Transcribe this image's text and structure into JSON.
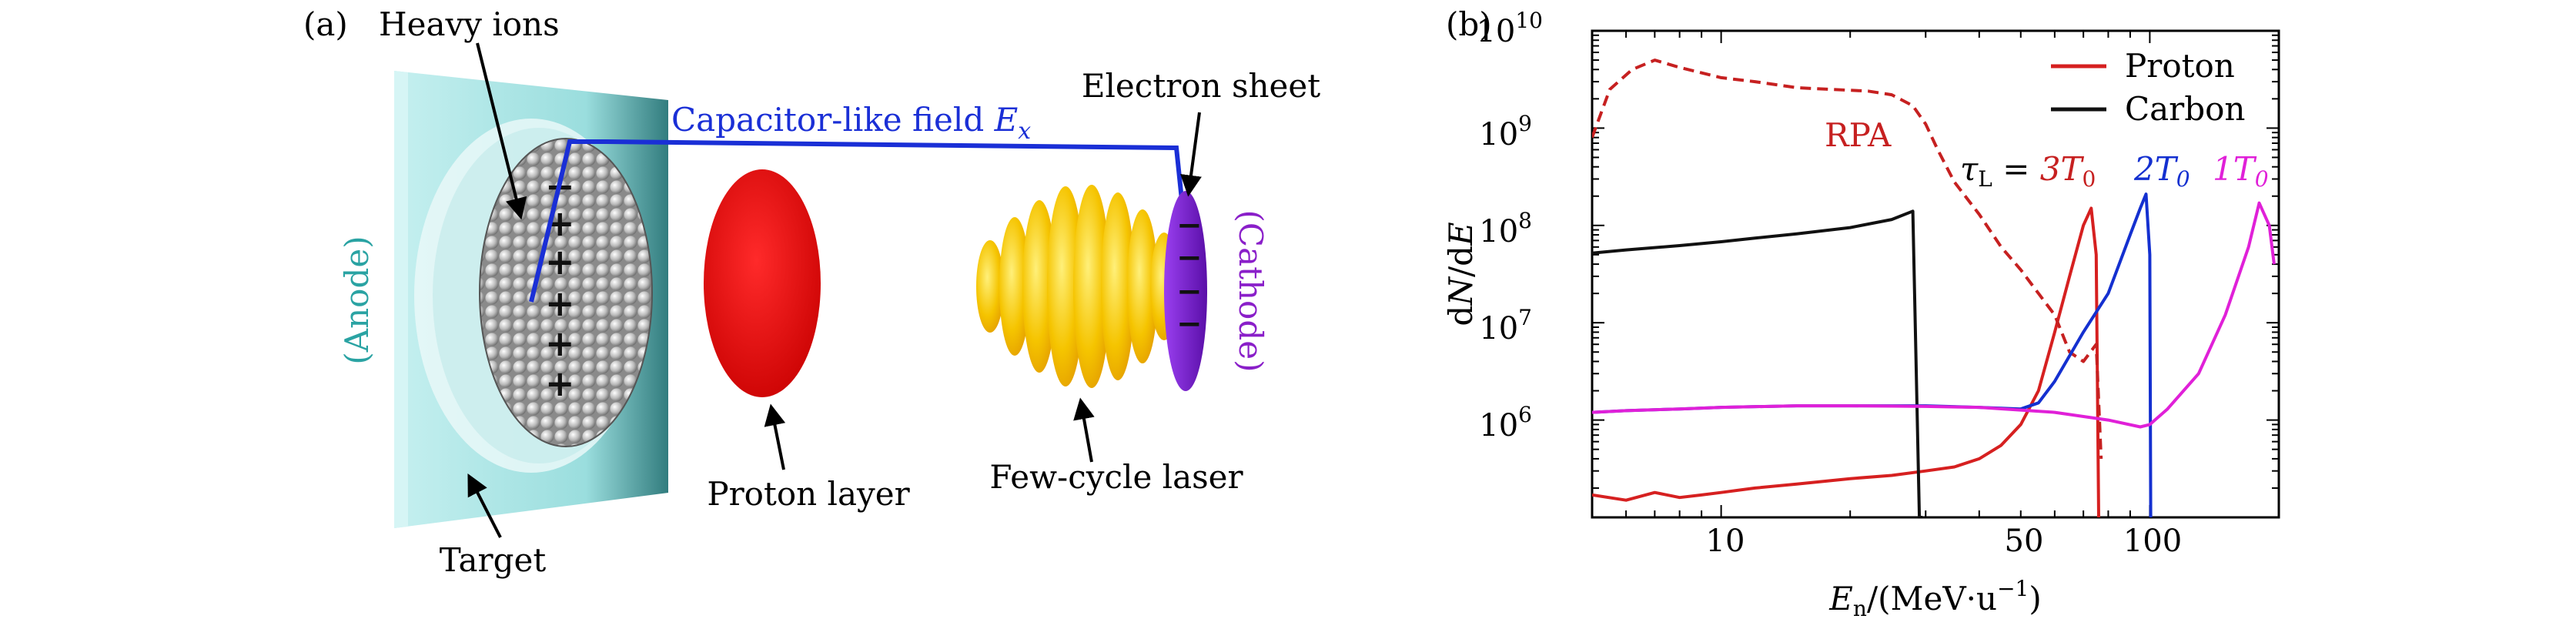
{
  "panel_a": {
    "tag": "(a)",
    "heavy_ions": "Heavy ions",
    "capacitor_field_text": "Capacitor-like field ",
    "capacitor_field_symbol": "E",
    "capacitor_field_subscript": "x",
    "electron_sheet": "Electron sheet",
    "anode": "(Anode)",
    "cathode": "(Cathode)",
    "proton_layer": "Proton layer",
    "few_cycle_laser": "Few-cycle laser",
    "target": "Target",
    "charge_plus": "+",
    "charge_minus": "−",
    "colors": {
      "field_line": "#1a2fd6",
      "proton": "#e00000",
      "laser": "#f5c400",
      "electron": "#7b1fd1",
      "target": "#7fd3d3",
      "anode_text": "#2aa3a3",
      "cathode_text": "#8a1fc9"
    }
  },
  "panel_b": {
    "tag": "(b)",
    "legend": [
      {
        "label": "Proton",
        "color": "#d62020"
      },
      {
        "label": "Carbon",
        "color": "#111111"
      }
    ],
    "annotation_rpa": "RPA",
    "annotation_tau": "τ",
    "annotation_tau_sub": "L",
    "annotation_eq": " = ",
    "annotation_3t0": "3T",
    "annotation_2t0": "2T",
    "annotation_1t0": "1T",
    "annotation_t0_sub": "0",
    "ylabel": "dN/dE",
    "xlabel": "En/(MeV·u−1)",
    "ytick_base": "10",
    "ytick_exps": [
      "10",
      "9",
      "8",
      "7",
      "6"
    ],
    "xticks": [
      "10",
      "50",
      "100"
    ]
  },
  "chart_data": {
    "type": "line",
    "xscale": "log",
    "yscale": "log",
    "xlim": [
      5,
      200
    ],
    "ylim": [
      100000,
      10000000000
    ],
    "grid": false,
    "legend_position": "top-right",
    "series": [
      {
        "name": "Proton",
        "color": "#d62020",
        "style": "solid",
        "x": [
          5,
          6,
          7,
          8,
          9,
          10,
          12,
          15,
          20,
          25,
          30,
          35,
          40,
          45,
          50,
          55,
          60,
          65,
          70,
          73,
          75,
          76
        ],
        "y": [
          170000,
          150000,
          180000,
          160000,
          170000,
          180000,
          200000,
          220000,
          250000,
          270000,
          300000,
          330000,
          400000,
          550000,
          900000,
          2000000,
          8000000,
          30000000,
          100000000,
          150000000,
          50000000,
          100000
        ]
      },
      {
        "name": "Carbon",
        "color": "#111111",
        "style": "solid",
        "x": [
          5,
          6,
          8,
          10,
          12,
          15,
          20,
          25,
          28,
          29,
          29.5
        ],
        "y": [
          52000000,
          56000000,
          62000000,
          68000000,
          74000000,
          82000000,
          95000000,
          115000000,
          140000000,
          100000,
          100000
        ]
      },
      {
        "name": "RPA",
        "color": "#c62020",
        "style": "dashed",
        "x": [
          5,
          5.5,
          6.2,
          7,
          8,
          10,
          12,
          15,
          18,
          22,
          25,
          28,
          30,
          32,
          35,
          40,
          45,
          50,
          55,
          60,
          65,
          70,
          75,
          77
        ],
        "y": [
          800000000,
          2500000000,
          4000000000,
          5000000000,
          4200000000,
          3300000000,
          3000000000,
          2600000000,
          2500000000,
          2400000000,
          2200000000,
          1700000000,
          1100000000,
          600000000,
          280000000,
          130000000,
          60000000,
          35000000,
          20000000,
          12000000,
          5000000,
          4000000,
          6000000,
          400000
        ]
      },
      {
        "name": "2T0",
        "color": "#1430d0",
        "style": "solid",
        "x": [
          5,
          6,
          8,
          10,
          15,
          20,
          30,
          40,
          50,
          55,
          60,
          70,
          80,
          90,
          95,
          98,
          100,
          100.5
        ],
        "y": [
          1200000,
          1250000,
          1300000,
          1350000,
          1400000,
          1400000,
          1400000,
          1350000,
          1300000,
          1500000,
          2500000,
          8000000,
          20000000,
          80000000,
          150000000,
          210000000,
          50000000,
          100000
        ]
      },
      {
        "name": "1T0",
        "color": "#e020d8",
        "style": "solid",
        "x": [
          5,
          6,
          8,
          10,
          15,
          20,
          30,
          40,
          60,
          80,
          95,
          100,
          110,
          130,
          150,
          170,
          180,
          190,
          195
        ],
        "y": [
          1200000,
          1250000,
          1300000,
          1350000,
          1400000,
          1400000,
          1380000,
          1350000,
          1200000,
          1000000,
          850000,
          900000,
          1300000,
          3000000,
          12000000,
          60000000,
          170000000,
          100000000,
          40000000
        ]
      }
    ],
    "annotations": [
      "RPA",
      "τL = 3T0",
      "2T0",
      "1T0"
    ],
    "xlabel": "En/(MeV·u−1)",
    "ylabel": "dN/dE",
    "xticks": [
      10,
      50,
      100
    ],
    "yticks": [
      1000000,
      10000000,
      100000000,
      1000000000,
      10000000000
    ]
  }
}
